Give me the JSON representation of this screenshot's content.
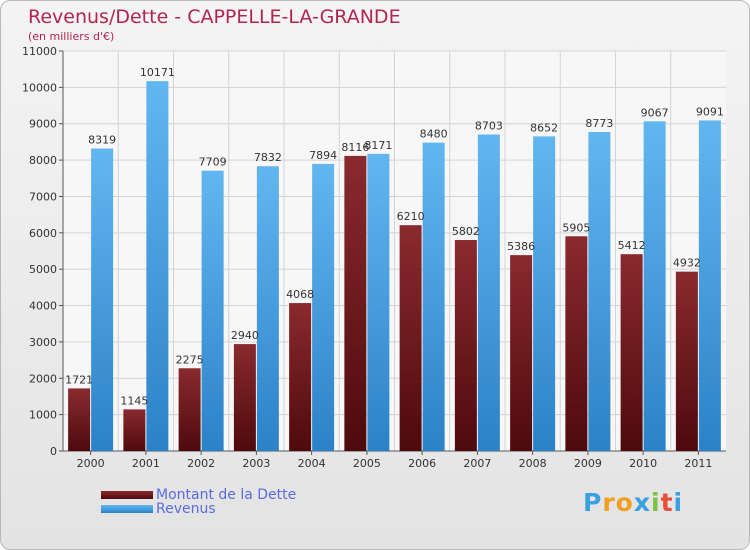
{
  "title": "Revenus/Dette - CAPPELLE-LA-GRANDE",
  "subtitle": "(en milliers d'€)",
  "colors": {
    "dette": "#7a1e23",
    "dette_dark": "#4e0d10",
    "revenus": "#58aeec",
    "revenus_dark": "#2f86cc",
    "title": "#b3244f",
    "legend_text": "#5a6bdc"
  },
  "legend": [
    {
      "label": "Montant de la Dette",
      "color": "#6b1418"
    },
    {
      "label": "Revenus",
      "color": "#4a9ee0"
    }
  ],
  "logo": {
    "letters": [
      "P",
      "r",
      "o",
      "x",
      "i",
      "t",
      "i"
    ],
    "colors": [
      "#3aa0e0",
      "#f0a020",
      "#f0a020",
      "#3aa0e0",
      "#7cc242",
      "#e8503a",
      "#3aa0e0"
    ]
  },
  "chart_data": {
    "type": "bar",
    "categories": [
      "2000",
      "2001",
      "2002",
      "2003",
      "2004",
      "2005",
      "2006",
      "2007",
      "2008",
      "2009",
      "2010",
      "2011"
    ],
    "series": [
      {
        "name": "Montant de la Dette",
        "values": [
          1721,
          1145,
          2275,
          2940,
          4068,
          8116,
          6210,
          5802,
          5386,
          5905,
          5412,
          4932
        ]
      },
      {
        "name": "Revenus",
        "values": [
          8319,
          10171,
          7709,
          7832,
          7894,
          8171,
          8480,
          8703,
          8652,
          8773,
          9067,
          9091
        ]
      }
    ],
    "yticks": [
      0,
      1000,
      2000,
      3000,
      4000,
      5000,
      6000,
      7000,
      8000,
      9000,
      10000,
      11000
    ],
    "ylim": [
      0,
      11000
    ],
    "grid": true,
    "legend_position": "bottom-left"
  }
}
